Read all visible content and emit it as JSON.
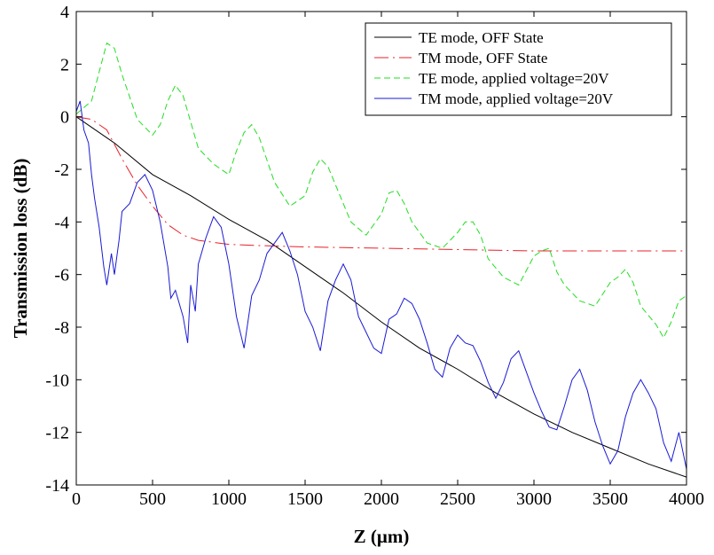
{
  "chart_data": {
    "type": "line",
    "xlabel": "Z (μm)",
    "ylabel": "Transmission loss (dB)",
    "xlim": [
      0,
      4000
    ],
    "ylim": [
      -14,
      4
    ],
    "xticks": [
      0,
      500,
      1000,
      1500,
      2000,
      2500,
      3000,
      3500,
      4000
    ],
    "yticks": [
      4,
      2,
      0,
      -2,
      -4,
      -6,
      -8,
      -10,
      -12,
      -14
    ],
    "xtick_labels": [
      "0",
      "500",
      "1000",
      "1500",
      "2000",
      "2500",
      "3000",
      "3500",
      "4000"
    ],
    "ytick_labels": [
      "4",
      "2",
      "0",
      "-2",
      "-4",
      "-6",
      "-8",
      "-10",
      "-12",
      "-14"
    ],
    "grid": false,
    "legend_position": "top-right",
    "series": [
      {
        "name": "TE mode, OFF State",
        "color": "#000000",
        "style": "solid",
        "x": [
          0,
          250,
          500,
          750,
          1000,
          1250,
          1500,
          1750,
          2000,
          2250,
          2500,
          2750,
          3000,
          3250,
          3500,
          3750,
          4000
        ],
        "y": [
          0,
          -1.0,
          -2.2,
          -3.0,
          -3.9,
          -4.7,
          -5.7,
          -6.7,
          -7.8,
          -8.8,
          -9.6,
          -10.5,
          -11.3,
          -12.0,
          -12.6,
          -13.2,
          -13.7
        ]
      },
      {
        "name": "TM mode, OFF State",
        "color": "#e8202a",
        "style": "dashdot",
        "x": [
          0,
          100,
          200,
          300,
          400,
          500,
          600,
          700,
          800,
          1000,
          1200,
          1500,
          2000,
          2500,
          3000,
          3500,
          4000
        ],
        "y": [
          0,
          -0.1,
          -0.5,
          -1.6,
          -2.6,
          -3.4,
          -4.1,
          -4.5,
          -4.7,
          -4.85,
          -4.9,
          -4.95,
          -5.0,
          -5.05,
          -5.1,
          -5.1,
          -5.1
        ]
      },
      {
        "name": "TE mode, applied voltage=20V",
        "color": "#22dd22",
        "style": "dashed",
        "x": [
          0,
          100,
          200,
          250,
          300,
          400,
          500,
          550,
          600,
          650,
          700,
          800,
          900,
          1000,
          1050,
          1100,
          1150,
          1200,
          1300,
          1400,
          1500,
          1550,
          1600,
          1650,
          1700,
          1800,
          1900,
          2000,
          2050,
          2100,
          2150,
          2200,
          2300,
          2400,
          2500,
          2550,
          2600,
          2650,
          2700,
          2800,
          2900,
          3000,
          3050,
          3100,
          3150,
          3200,
          3300,
          3400,
          3500,
          3550,
          3600,
          3650,
          3700,
          3800,
          3850,
          3900,
          3950,
          4000
        ],
        "y": [
          0.1,
          0.6,
          2.8,
          2.6,
          1.6,
          -0.1,
          -0.7,
          -0.3,
          0.6,
          1.2,
          0.8,
          -1.2,
          -1.8,
          -2.2,
          -1.3,
          -0.6,
          -0.3,
          -0.8,
          -2.5,
          -3.4,
          -3.0,
          -2.1,
          -1.6,
          -1.9,
          -2.6,
          -4.0,
          -4.5,
          -3.7,
          -2.9,
          -2.8,
          -3.3,
          -4.0,
          -4.8,
          -5.0,
          -4.4,
          -4.0,
          -4.0,
          -4.5,
          -5.4,
          -6.1,
          -6.4,
          -5.3,
          -5.1,
          -5.0,
          -5.9,
          -6.4,
          -7.0,
          -7.2,
          -6.3,
          -6.1,
          -5.8,
          -6.3,
          -7.2,
          -7.9,
          -8.4,
          -7.8,
          -7.0,
          -6.8
        ]
      },
      {
        "name": "TM mode, applied voltage=20V",
        "color": "#1a1ad4",
        "style": "solid",
        "x": [
          0,
          25,
          50,
          80,
          100,
          120,
          150,
          180,
          200,
          230,
          250,
          280,
          300,
          350,
          400,
          450,
          500,
          550,
          600,
          620,
          650,
          700,
          730,
          750,
          780,
          800,
          850,
          900,
          950,
          1000,
          1050,
          1100,
          1150,
          1200,
          1250,
          1300,
          1350,
          1400,
          1450,
          1500,
          1550,
          1600,
          1650,
          1700,
          1750,
          1800,
          1850,
          1900,
          1950,
          2000,
          2050,
          2100,
          2150,
          2200,
          2250,
          2300,
          2350,
          2400,
          2450,
          2500,
          2550,
          2600,
          2650,
          2700,
          2750,
          2800,
          2850,
          2900,
          2950,
          3000,
          3050,
          3100,
          3150,
          3200,
          3250,
          3300,
          3350,
          3400,
          3450,
          3500,
          3550,
          3600,
          3650,
          3700,
          3750,
          3800,
          3850,
          3900,
          3950,
          4000
        ],
        "y": [
          0.2,
          0.6,
          -0.5,
          -1.0,
          -2.2,
          -3.1,
          -4.2,
          -5.7,
          -6.4,
          -5.2,
          -6.0,
          -4.7,
          -3.6,
          -3.3,
          -2.5,
          -2.2,
          -2.8,
          -4.0,
          -5.7,
          -6.9,
          -6.6,
          -7.6,
          -8.6,
          -6.4,
          -7.4,
          -5.6,
          -4.6,
          -3.8,
          -4.2,
          -5.6,
          -7.6,
          -8.8,
          -6.8,
          -6.2,
          -5.2,
          -4.8,
          -4.4,
          -5.1,
          -6.0,
          -7.4,
          -8.0,
          -8.9,
          -7.0,
          -6.2,
          -5.6,
          -6.2,
          -7.6,
          -8.2,
          -8.8,
          -9.0,
          -7.7,
          -7.5,
          -6.9,
          -7.1,
          -7.7,
          -8.6,
          -9.6,
          -9.9,
          -8.8,
          -8.3,
          -8.6,
          -8.7,
          -9.3,
          -10.1,
          -10.7,
          -10.1,
          -9.2,
          -8.9,
          -9.7,
          -10.5,
          -11.2,
          -11.8,
          -11.9,
          -11.0,
          -10.0,
          -9.6,
          -10.4,
          -11.6,
          -12.5,
          -13.2,
          -12.7,
          -11.4,
          -10.5,
          -10.0,
          -10.5,
          -11.1,
          -12.4,
          -13.1,
          -12.0,
          -13.4
        ]
      }
    ]
  }
}
